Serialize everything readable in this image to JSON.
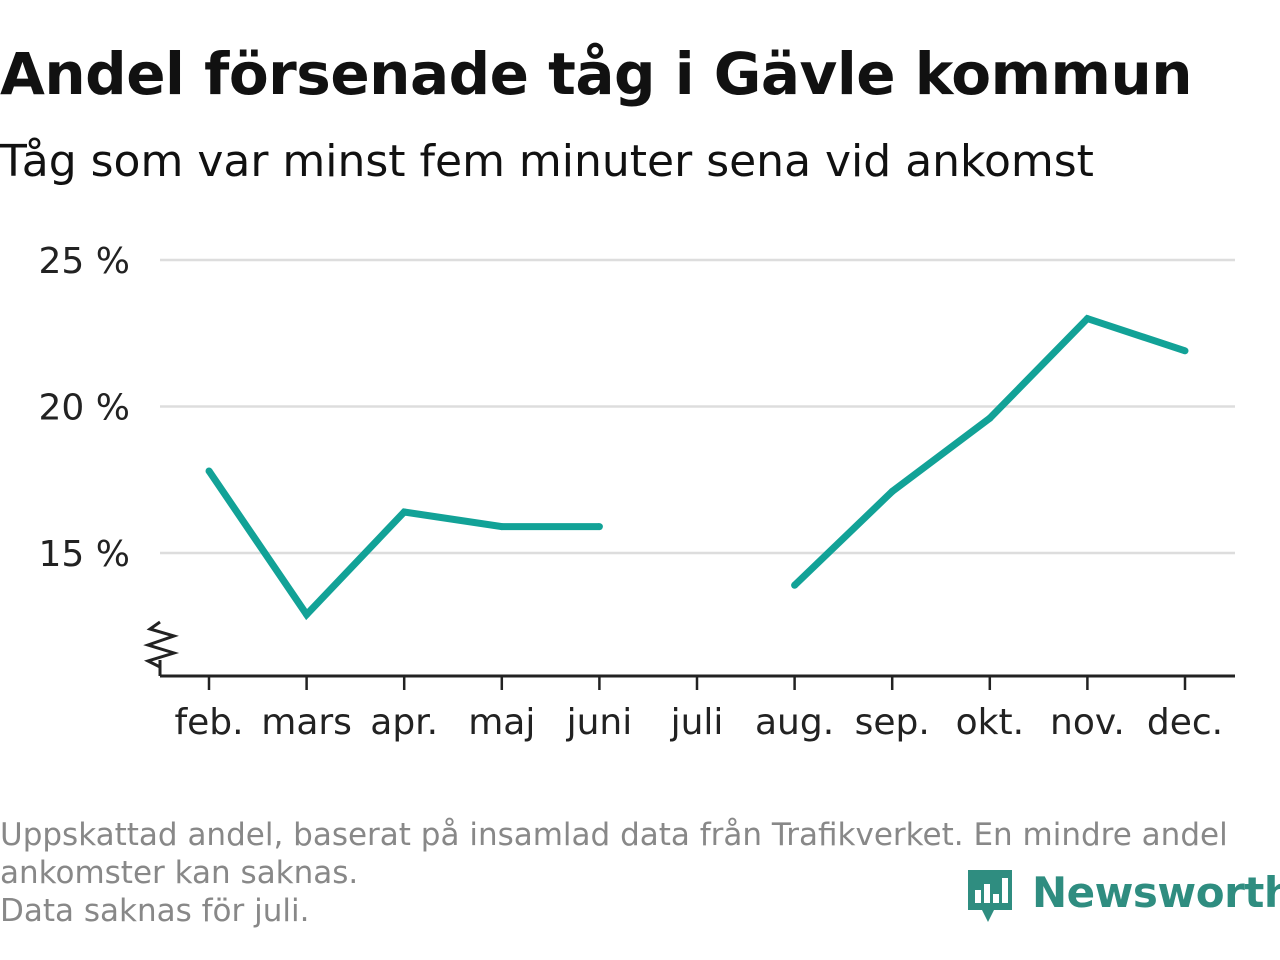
{
  "header": {
    "title": "Andel försenade tåg i Gävle kommun",
    "subtitle": "Tåg som var minst fem minuter sena vid ankomst"
  },
  "chart_data": {
    "type": "line",
    "categories": [
      "feb.",
      "mars",
      "apr.",
      "maj",
      "juni",
      "juli",
      "aug.",
      "sep.",
      "okt.",
      "nov.",
      "dec."
    ],
    "series": [
      {
        "values": [
          17.8,
          12.9,
          16.4,
          15.9,
          15.9,
          null,
          13.9,
          17.1,
          19.6,
          23.0,
          21.9
        ]
      }
    ],
    "y_ticks": [
      15,
      20,
      25
    ],
    "y_tick_labels": [
      "15 %",
      "20 %",
      "25 %"
    ],
    "ylim": [
      11,
      25
    ],
    "y_axis_break": true,
    "grid": true,
    "xlabel": "",
    "ylabel": "",
    "line_color": "#12a297",
    "grid_color": "#dddddd",
    "axis_color": "#222222"
  },
  "footnote": {
    "line1": "Uppskattad andel, baserat på insamlad data från Trafikverket. En mindre andel",
    "line2": "ankomster kan saknas.",
    "line3": "Data saknas för juli."
  },
  "brand": {
    "name": "Newsworthy",
    "icon": "newsworthy-logo-icon",
    "color": "#2f8d80"
  }
}
